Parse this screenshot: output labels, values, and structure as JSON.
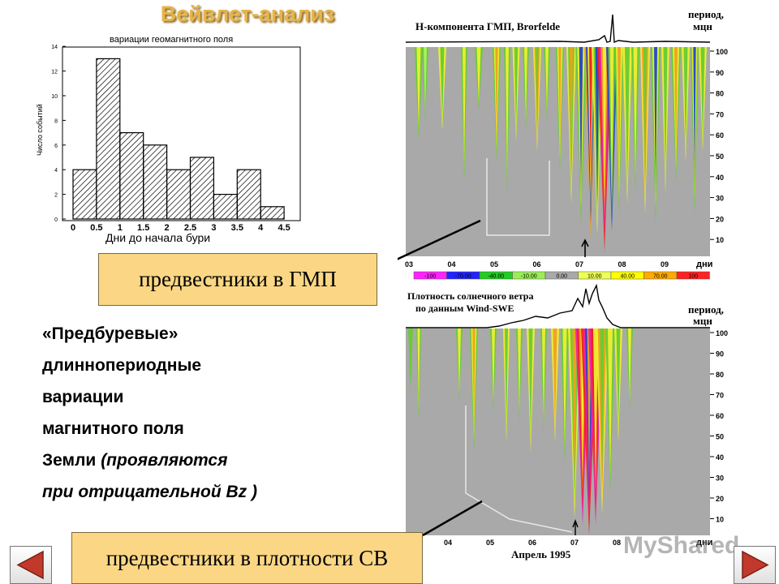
{
  "slide": {
    "title": "Вейвлет-анализ",
    "callout_gmp": "предвестники в ГМП",
    "callout_sw": "предвестники в плотности СВ",
    "desc_lines": [
      "«Предбуревые»",
      "длиннопериодные",
      "вариации",
      "магнитного поля"
    ],
    "desc_line5_bold": "Земли ",
    "desc_line5_italic": "(проявляются",
    "desc_line6": "при отрицательной Bz )",
    "watermark": "MyShared"
  },
  "histogram": {
    "chart_data": {
      "type": "bar",
      "title": "вариации геомагнитного поля",
      "xlabel": "Дни до начала бури",
      "ylabel": "Число событий",
      "bin_edges": [
        0,
        0.5,
        1,
        1.5,
        2,
        2.5,
        3,
        3.5,
        4,
        4.5
      ],
      "values": [
        4,
        13,
        7,
        6,
        4,
        5,
        2,
        4,
        1
      ],
      "xticks": [
        "0",
        "0.5",
        "1",
        "1.5",
        "2",
        "2.5",
        "3",
        "3.5",
        "4",
        "4.5"
      ],
      "yticks": [
        "0",
        "2",
        "4",
        "6",
        "8",
        "10",
        "12",
        "14"
      ],
      "ylim": [
        0,
        14
      ],
      "xlim": [
        0,
        4.5
      ],
      "fill": "hatched"
    }
  },
  "wavelet_top": {
    "title": "H-компонента ГМП,  Brorfelde",
    "period_label": "период,",
    "period_unit": "мцн",
    "days_label": "дни",
    "yticks": [
      "100",
      "90",
      "80",
      "70",
      "60",
      "50",
      "40",
      "30",
      "20",
      "10"
    ],
    "xticks": [
      "03",
      "04",
      "05",
      "06",
      "07",
      "08",
      "09"
    ],
    "colorbar_labels": [
      "-100",
      "-70.00",
      "-40.00",
      "-10.00",
      "0.00",
      "10.00",
      "40.00",
      "70.00",
      "100"
    ],
    "colorbar_colors": [
      "#ff22ff",
      "#2222ff",
      "#22cc22",
      "#99ee55",
      "#a9a9a9",
      "#eeff55",
      "#ffff00",
      "#ffaa00",
      "#ff2222"
    ]
  },
  "wavelet_bottom": {
    "title_line1": "Плотность солнечного ветра",
    "title_line2": "по данным Wind-SWE",
    "period_label": "период,",
    "period_unit": "мцн",
    "days_label": "дни",
    "xlabel": "Апрель 1995",
    "yticks": [
      "100",
      "90",
      "80",
      "70",
      "60",
      "50",
      "40",
      "30",
      "20",
      "10"
    ],
    "xticks": [
      "04",
      "05",
      "06",
      "07",
      "08"
    ]
  },
  "colors": {
    "title": "#e6b44a",
    "callout_bg": "#fbd785",
    "plot_bg": "#a9a9a9",
    "nav_arrow": "#c0392b"
  }
}
